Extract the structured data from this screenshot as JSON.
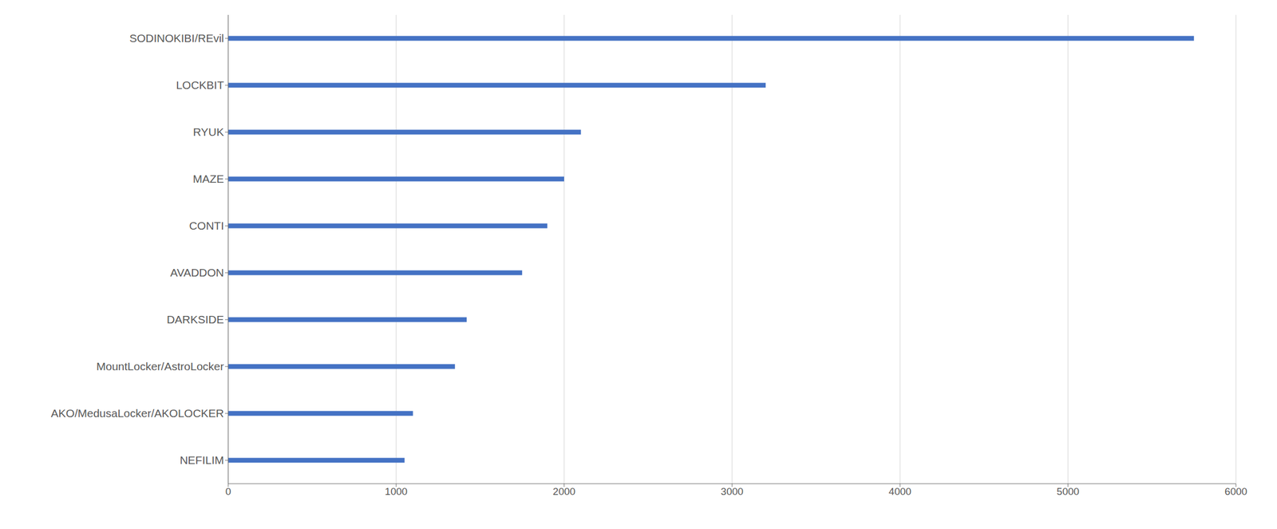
{
  "chart_data": {
    "type": "bar",
    "orientation": "horizontal",
    "categories": [
      "NEFILIM",
      "AKO/MedusaLocker/AKOLOCKER",
      "MountLocker/AstroLocker",
      "DARKSIDE",
      "AVADDON",
      "CONTI",
      "MAZE",
      "RYUK",
      "LOCKBIT",
      "SODINOKIBI/REvil"
    ],
    "values": [
      1050,
      1100,
      1350,
      1420,
      1750,
      1900,
      2000,
      2100,
      3200,
      5750
    ],
    "color": "#4472C4",
    "xlim": [
      0,
      6000
    ],
    "xticks": [
      0,
      1000,
      2000,
      3000,
      4000,
      5000,
      6000
    ],
    "grid": true
  }
}
